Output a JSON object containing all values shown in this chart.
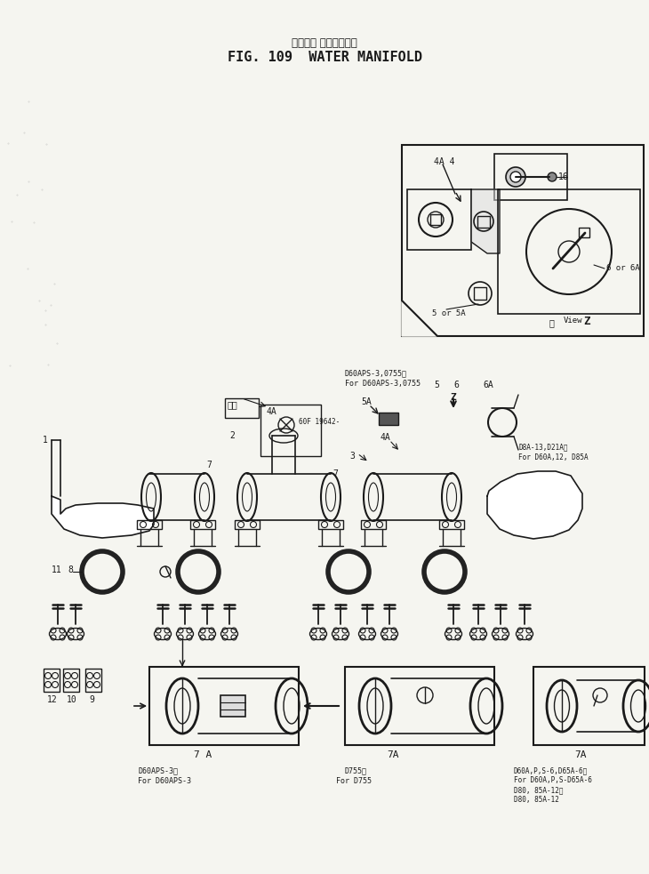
{
  "title_jp": "ウォータ マニホールド",
  "title_en": "FIG. 109  WATER MANIFOLD",
  "bg_color": "#f5f5f0",
  "line_color": "#1a1a1a",
  "fig_width": 7.3,
  "fig_height": 9.83,
  "dpi": 100,
  "label_4A4": "4A 4",
  "label_16": "16",
  "label_5_5A": "5 or 5A",
  "label_6_6A": "6 or 6A",
  "label_view_z": "View Z",
  "label_view_kanji": "矢",
  "note_d60aps_jp": "D60APS-3,0755用",
  "note_d60aps_en": "For D60APS-3,0755",
  "label_5A": "5A",
  "label_5": "5",
  "label_6": "6",
  "label_6A": "6A",
  "label_4A_mid": "4A",
  "label_3": "3",
  "label_2": "2",
  "label_1": "1",
  "label_7_left": "7",
  "label_7_mid": "7",
  "label_Z": "Z",
  "label_11": "11",
  "label_8": "8",
  "label_4A_box": "4A",
  "ref_60f": "60F 19642-",
  "note_d85a_jp": "D8A-13,D21A用",
  "note_d85a_en": "For D60A,12, D85A",
  "label_12": "12",
  "label_10": "10",
  "label_9": "9",
  "label_7A_left": "7 A",
  "label_7A_mid": "7A",
  "label_7A_right": "7A",
  "caption_left_jp": "D60APS-3用",
  "caption_left_en": "For D60APS-3",
  "caption_mid_jp": "D755用",
  "caption_mid_en": "For D755",
  "caption_right_1": "D60A,P,S-6,D65A-6用",
  "caption_right_2": "For D60A,P,S-D65A-6",
  "caption_right_3": "D80, 85A-12用",
  "caption_right_4": "D80, 85A-12",
  "arrow_text": "矢示"
}
